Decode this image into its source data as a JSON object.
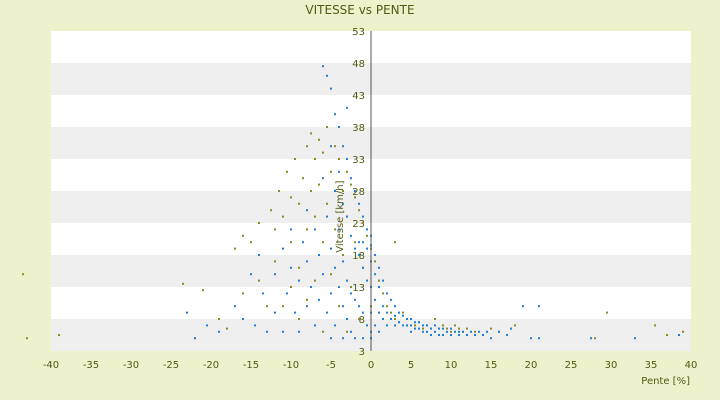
{
  "chart_data": {
    "type": "scatter",
    "title": "VITESSE vs PENTE",
    "xlabel": "Pente [%]",
    "ylabel": "Vitesse [km/h]",
    "xlim": [
      -40,
      40
    ],
    "ylim": [
      3,
      53
    ],
    "x_ticks": [
      "-40",
      "-35",
      "-30",
      "-25",
      "-20",
      "-15",
      "-10",
      "-5",
      "0",
      "5",
      "10",
      "15",
      "20",
      "25",
      "30",
      "35",
      "40"
    ],
    "y_ticks": [
      "3",
      "8",
      "13",
      "18",
      "23",
      "28",
      "33",
      "38",
      "43",
      "48",
      "53"
    ],
    "grid": true,
    "legend": "none",
    "colors": {
      "background": "#eef2cc",
      "plot_band_light": "#ffffff",
      "plot_band_dark": "#efefef",
      "series_blue": "#1f7fd6",
      "series_olive": "#8a8a22",
      "text": "#4f5a12"
    },
    "series": [
      {
        "color_key": "series_olive",
        "points": [
          [
            -43.5,
            15
          ],
          [
            -43,
            5
          ],
          [
            -39,
            5.5
          ],
          [
            -23.5,
            13.5
          ],
          [
            -22,
            5
          ],
          [
            -21,
            12.5
          ],
          [
            -19,
            8
          ],
          [
            -18,
            6.5
          ],
          [
            -16,
            12
          ],
          [
            -17,
            19
          ],
          [
            -16,
            21
          ],
          [
            -15,
            20
          ],
          [
            -14,
            23
          ],
          [
            -14,
            14
          ],
          [
            -13,
            10
          ],
          [
            -12.5,
            25
          ],
          [
            -12,
            22
          ],
          [
            -12,
            17
          ],
          [
            -11.5,
            28
          ],
          [
            -11,
            24
          ],
          [
            -11,
            10
          ],
          [
            -10.5,
            31
          ],
          [
            -10,
            27
          ],
          [
            -10,
            20
          ],
          [
            -10,
            13
          ],
          [
            -9.5,
            33
          ],
          [
            -9,
            26
          ],
          [
            -9,
            16
          ],
          [
            -9,
            8
          ],
          [
            -8.5,
            30
          ],
          [
            -8,
            35
          ],
          [
            -8,
            22
          ],
          [
            -8,
            11
          ],
          [
            -7.5,
            37
          ],
          [
            -7.5,
            28
          ],
          [
            -7,
            33
          ],
          [
            -7,
            24
          ],
          [
            -7,
            14
          ],
          [
            -6.5,
            36
          ],
          [
            -6.5,
            29
          ],
          [
            -6,
            34
          ],
          [
            -6,
            20
          ],
          [
            -6,
            6
          ],
          [
            -5.5,
            38
          ],
          [
            -5.5,
            26
          ],
          [
            -5,
            31
          ],
          [
            -5,
            15
          ],
          [
            -4.5,
            35
          ],
          [
            -4.5,
            22
          ],
          [
            -4,
            33
          ],
          [
            -4,
            10
          ],
          [
            -3.5,
            28
          ],
          [
            -3.5,
            18
          ],
          [
            -3,
            31
          ],
          [
            -3,
            24
          ],
          [
            -3,
            6
          ],
          [
            -2.5,
            29
          ],
          [
            -2.5,
            13
          ],
          [
            -2,
            27
          ],
          [
            -2,
            20
          ],
          [
            -1.5,
            25
          ],
          [
            -1.5,
            8
          ],
          [
            -1,
            23
          ],
          [
            -1,
            16
          ],
          [
            -0.5,
            21
          ],
          [
            0,
            19
          ],
          [
            0,
            10
          ],
          [
            0.5,
            17
          ],
          [
            1,
            14
          ],
          [
            1.5,
            12
          ],
          [
            2,
            10
          ],
          [
            2.5,
            9
          ],
          [
            3,
            20
          ],
          [
            3,
            8
          ],
          [
            3.5,
            7.5
          ],
          [
            4,
            9
          ],
          [
            4.5,
            7
          ],
          [
            5,
            8
          ],
          [
            5.5,
            7
          ],
          [
            6,
            7.5
          ],
          [
            6.5,
            6.5
          ],
          [
            7,
            7
          ],
          [
            7.5,
            6.5
          ],
          [
            8,
            8
          ],
          [
            8.5,
            6.5
          ],
          [
            9,
            7
          ],
          [
            9.5,
            6.5
          ],
          [
            10,
            6
          ],
          [
            10.5,
            7
          ],
          [
            11,
            6.5
          ],
          [
            11.5,
            6
          ],
          [
            12,
            6.5
          ],
          [
            13,
            6
          ],
          [
            14,
            5.5
          ],
          [
            15,
            6.5
          ],
          [
            16,
            6
          ],
          [
            17,
            5.5
          ],
          [
            18,
            7
          ],
          [
            29.5,
            9
          ],
          [
            28,
            5
          ],
          [
            35.5,
            7
          ],
          [
            37,
            5.5
          ],
          [
            39,
            6
          ]
        ]
      },
      {
        "color_key": "series_blue",
        "points": [
          [
            -23,
            9
          ],
          [
            -22,
            5
          ],
          [
            -20.5,
            7
          ],
          [
            -19,
            6
          ],
          [
            -17,
            10
          ],
          [
            -16,
            8
          ],
          [
            -15,
            15
          ],
          [
            -14.5,
            7
          ],
          [
            -14,
            18
          ],
          [
            -13.5,
            12
          ],
          [
            -13,
            6
          ],
          [
            -12,
            15
          ],
          [
            -12,
            9
          ],
          [
            -11,
            19
          ],
          [
            -11,
            6
          ],
          [
            -10.5,
            12
          ],
          [
            -10,
            22
          ],
          [
            -10,
            16
          ],
          [
            -9.5,
            9
          ],
          [
            -9,
            14
          ],
          [
            -9,
            6
          ],
          [
            -8.5,
            20
          ],
          [
            -8,
            25
          ],
          [
            -8,
            17
          ],
          [
            -8,
            10
          ],
          [
            -7.5,
            13
          ],
          [
            -7,
            22
          ],
          [
            -7,
            7
          ],
          [
            -6.5,
            18
          ],
          [
            -6.5,
            11
          ],
          [
            -6,
            47.5
          ],
          [
            -6,
            30
          ],
          [
            -6,
            15
          ],
          [
            -5.5,
            46
          ],
          [
            -5.5,
            24
          ],
          [
            -5.5,
            9
          ],
          [
            -5,
            44
          ],
          [
            -5,
            35
          ],
          [
            -5,
            19
          ],
          [
            -5,
            12
          ],
          [
            -5,
            5
          ],
          [
            -4.5,
            40
          ],
          [
            -4.5,
            28
          ],
          [
            -4.5,
            16
          ],
          [
            -4.5,
            7
          ],
          [
            -4,
            38
          ],
          [
            -4,
            31
          ],
          [
            -4,
            22
          ],
          [
            -4,
            13
          ],
          [
            -3.5,
            35
          ],
          [
            -3.5,
            26
          ],
          [
            -3.5,
            17
          ],
          [
            -3.5,
            10
          ],
          [
            -3.5,
            5
          ],
          [
            -3,
            41
          ],
          [
            -3,
            33
          ],
          [
            -3,
            24
          ],
          [
            -3,
            14
          ],
          [
            -3,
            8
          ],
          [
            -2.5,
            30
          ],
          [
            -2.5,
            21
          ],
          [
            -2.5,
            12
          ],
          [
            -2.5,
            6
          ],
          [
            -2,
            28
          ],
          [
            -2,
            19
          ],
          [
            -2,
            11
          ],
          [
            -2,
            5
          ],
          [
            -1.5,
            26
          ],
          [
            -1.5,
            18
          ],
          [
            -1.5,
            10
          ],
          [
            -1.5,
            20
          ],
          [
            -1,
            24
          ],
          [
            -1,
            20
          ],
          [
            -1,
            16
          ],
          [
            -1,
            9
          ],
          [
            -1,
            5
          ],
          [
            -0.5,
            22
          ],
          [
            -0.5,
            19
          ],
          [
            -0.5,
            14
          ],
          [
            -0.5,
            7
          ],
          [
            0,
            21
          ],
          [
            0,
            19.5
          ],
          [
            0,
            17
          ],
          [
            0,
            13
          ],
          [
            0,
            9
          ],
          [
            0,
            6
          ],
          [
            0,
            5
          ],
          [
            0.5,
            18
          ],
          [
            0.5,
            15
          ],
          [
            0.5,
            11
          ],
          [
            0.5,
            7
          ],
          [
            1,
            16
          ],
          [
            1,
            13
          ],
          [
            1,
            9
          ],
          [
            1,
            6
          ],
          [
            1.5,
            14
          ],
          [
            1.5,
            10
          ],
          [
            1.5,
            8
          ],
          [
            2,
            12
          ],
          [
            2,
            9
          ],
          [
            2,
            7
          ],
          [
            2.5,
            11
          ],
          [
            2.5,
            8
          ],
          [
            3,
            10
          ],
          [
            3,
            8.5
          ],
          [
            3,
            7
          ],
          [
            3.5,
            9
          ],
          [
            3.5,
            7.5
          ],
          [
            4,
            8.5
          ],
          [
            4,
            7
          ],
          [
            4.5,
            8
          ],
          [
            4.5,
            7
          ],
          [
            5,
            8
          ],
          [
            5,
            7
          ],
          [
            5,
            6
          ],
          [
            5.5,
            7.5
          ],
          [
            5.5,
            6.5
          ],
          [
            6,
            7.5
          ],
          [
            6,
            6.5
          ],
          [
            6.5,
            7
          ],
          [
            6.5,
            6
          ],
          [
            7,
            7
          ],
          [
            7,
            6
          ],
          [
            7.5,
            6.5
          ],
          [
            7.5,
            5.5
          ],
          [
            8,
            7
          ],
          [
            8,
            6
          ],
          [
            8.5,
            6.5
          ],
          [
            8.5,
            5.5
          ],
          [
            9,
            6.5
          ],
          [
            9,
            5.5
          ],
          [
            9.5,
            6
          ],
          [
            10,
            6.5
          ],
          [
            10,
            5.5
          ],
          [
            10.5,
            6
          ],
          [
            11,
            6
          ],
          [
            11,
            5.5
          ],
          [
            11.5,
            6
          ],
          [
            12,
            5.5
          ],
          [
            12.5,
            6
          ],
          [
            13,
            5.5
          ],
          [
            13.5,
            6
          ],
          [
            14,
            5.5
          ],
          [
            14.5,
            6
          ],
          [
            15,
            5
          ],
          [
            16,
            6
          ],
          [
            17,
            5.5
          ],
          [
            17.5,
            6.5
          ],
          [
            19,
            10
          ],
          [
            20,
            5
          ],
          [
            21,
            10
          ],
          [
            21,
            5
          ],
          [
            27.5,
            5
          ],
          [
            33,
            5
          ],
          [
            38.5,
            5.5
          ]
        ]
      }
    ]
  }
}
